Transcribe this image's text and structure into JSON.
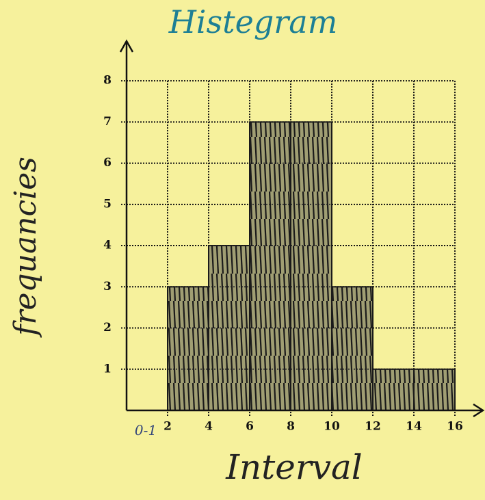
{
  "chart_data": {
    "type": "histogram",
    "title": "Histegram",
    "x_label": "Interval",
    "y_label": "frequancies",
    "annotation": "0-1",
    "bins": [
      2,
      4,
      6,
      8,
      10,
      12,
      14,
      16
    ],
    "values": [
      3,
      4,
      7,
      7,
      3,
      1,
      1
    ],
    "color": "#5a5a52",
    "xlim": [
      0,
      16.5
    ],
    "xticks": [
      2,
      4,
      6,
      8,
      10,
      12,
      14,
      16
    ],
    "ylim": [
      0,
      8.5
    ],
    "yticks": [
      1,
      2,
      3,
      4,
      5,
      6,
      7,
      8
    ],
    "grid": true
  }
}
